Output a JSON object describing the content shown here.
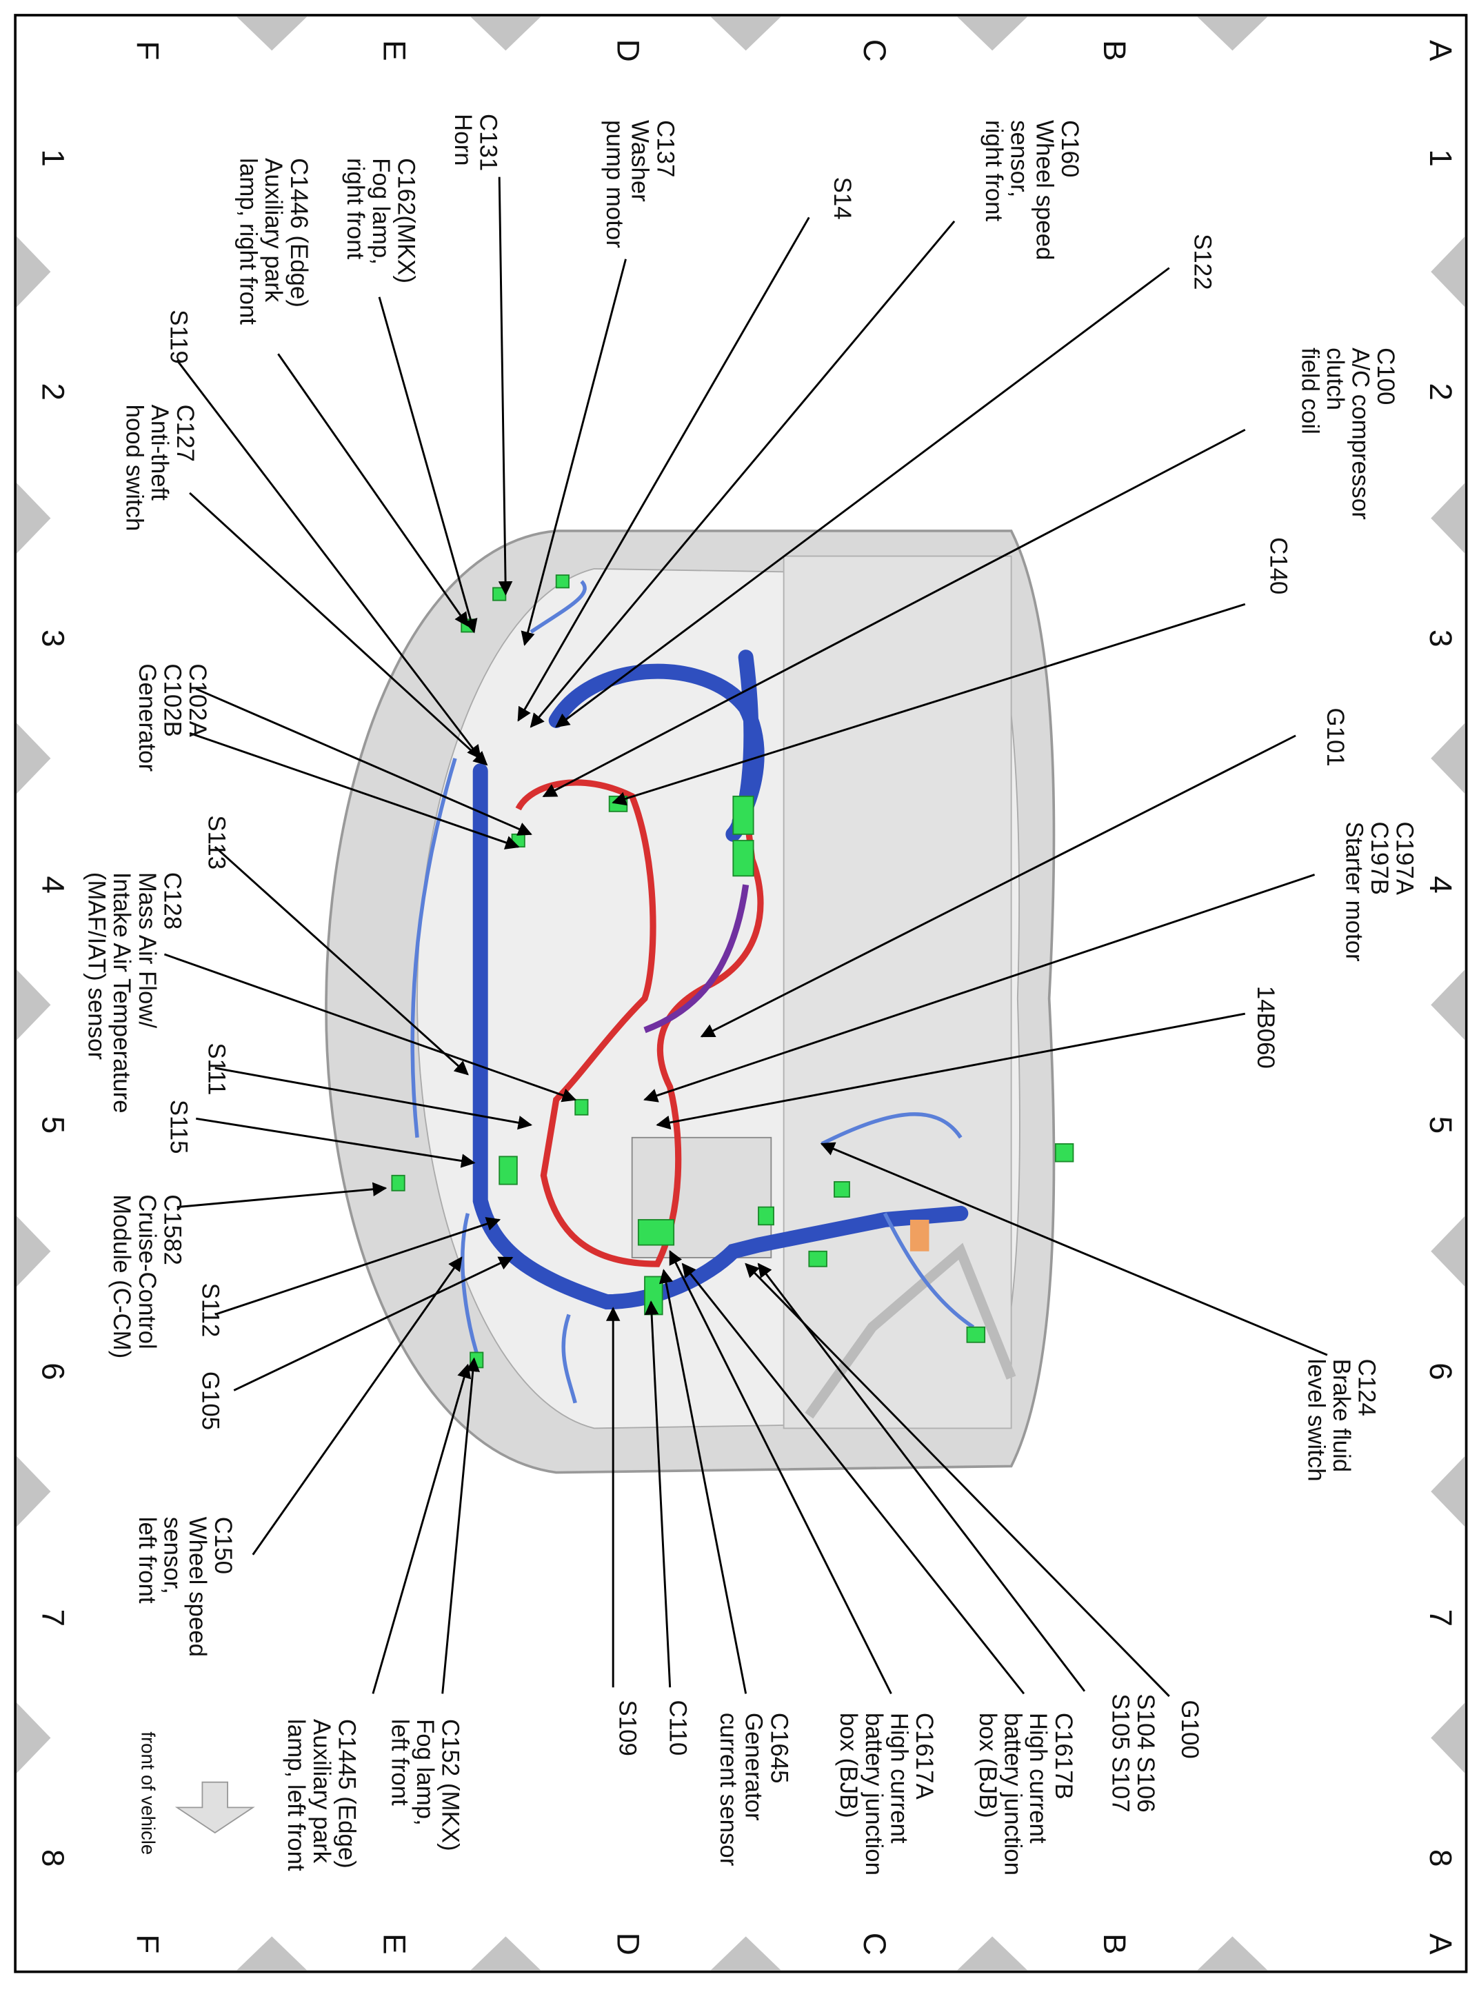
{
  "grid": {
    "rows": [
      "A",
      "B",
      "C",
      "D",
      "E",
      "F"
    ],
    "columns": [
      "1",
      "2",
      "3",
      "4",
      "5",
      "6",
      "7",
      "8"
    ]
  },
  "callouts": [
    {
      "lines": [
        "C160",
        "Wheel speed",
        "sensor,",
        "right front"
      ]
    },
    {
      "lines": [
        "S14"
      ]
    },
    {
      "lines": [
        "S122"
      ]
    },
    {
      "lines": [
        "C100",
        "A/C compressor",
        "clutch",
        "field coil"
      ]
    },
    {
      "lines": [
        "C140"
      ]
    },
    {
      "lines": [
        "G101"
      ]
    },
    {
      "lines": [
        "C197A",
        "C197B",
        "Starter motor"
      ]
    },
    {
      "lines": [
        "14B060"
      ]
    },
    {
      "lines": [
        "C124",
        "Brake fluid",
        "level switch"
      ]
    },
    {
      "lines": [
        "G100"
      ]
    },
    {
      "lines": [
        "S104  S106",
        "S105  S107"
      ]
    },
    {
      "lines": [
        "C1617B",
        "High current",
        "battery junction",
        "box (BJB)"
      ]
    },
    {
      "lines": [
        "C1617A",
        "High current",
        "battery junction",
        "box (BJB)"
      ]
    },
    {
      "lines": [
        "C1645",
        "Generator",
        "current sensor"
      ]
    },
    {
      "lines": [
        "C110"
      ]
    },
    {
      "lines": [
        "S109"
      ]
    },
    {
      "lines": [
        "C152 (MKX)",
        "Fog lamp,",
        "left front"
      ]
    },
    {
      "lines": [
        "C1445 (Edge)",
        "Auxiliary park",
        "lamp, left front"
      ]
    },
    {
      "lines": [
        "C150",
        "Wheel speed",
        "sensor,",
        "left front"
      ]
    },
    {
      "lines": [
        "G105"
      ]
    },
    {
      "lines": [
        "S112"
      ]
    },
    {
      "lines": [
        "C1582",
        "Cruise-Control",
        "Module (C-CM)"
      ]
    },
    {
      "lines": [
        "S115"
      ]
    },
    {
      "lines": [
        "S111"
      ]
    },
    {
      "lines": [
        "C128",
        "Mass Air Flow/",
        "Intake Air Temperature",
        "(MAF/IAT) sensor"
      ]
    },
    {
      "lines": [
        "S113"
      ]
    },
    {
      "lines": [
        "C102A",
        "C102B",
        "Generator"
      ]
    },
    {
      "lines": [
        "C127",
        "Anti-theft",
        "hood switch"
      ]
    },
    {
      "lines": [
        "S119"
      ]
    },
    {
      "lines": [
        "C1446 (Edge)",
        "Auxiliary park",
        "lamp, right front"
      ]
    },
    {
      "lines": [
        "C162(MKX)",
        "Fog lamp,",
        "right front"
      ]
    },
    {
      "lines": [
        "C131",
        "Horn"
      ]
    },
    {
      "lines": [
        "C137",
        "Washer",
        "pump motor"
      ]
    }
  ],
  "front_label": "front of vehicle"
}
